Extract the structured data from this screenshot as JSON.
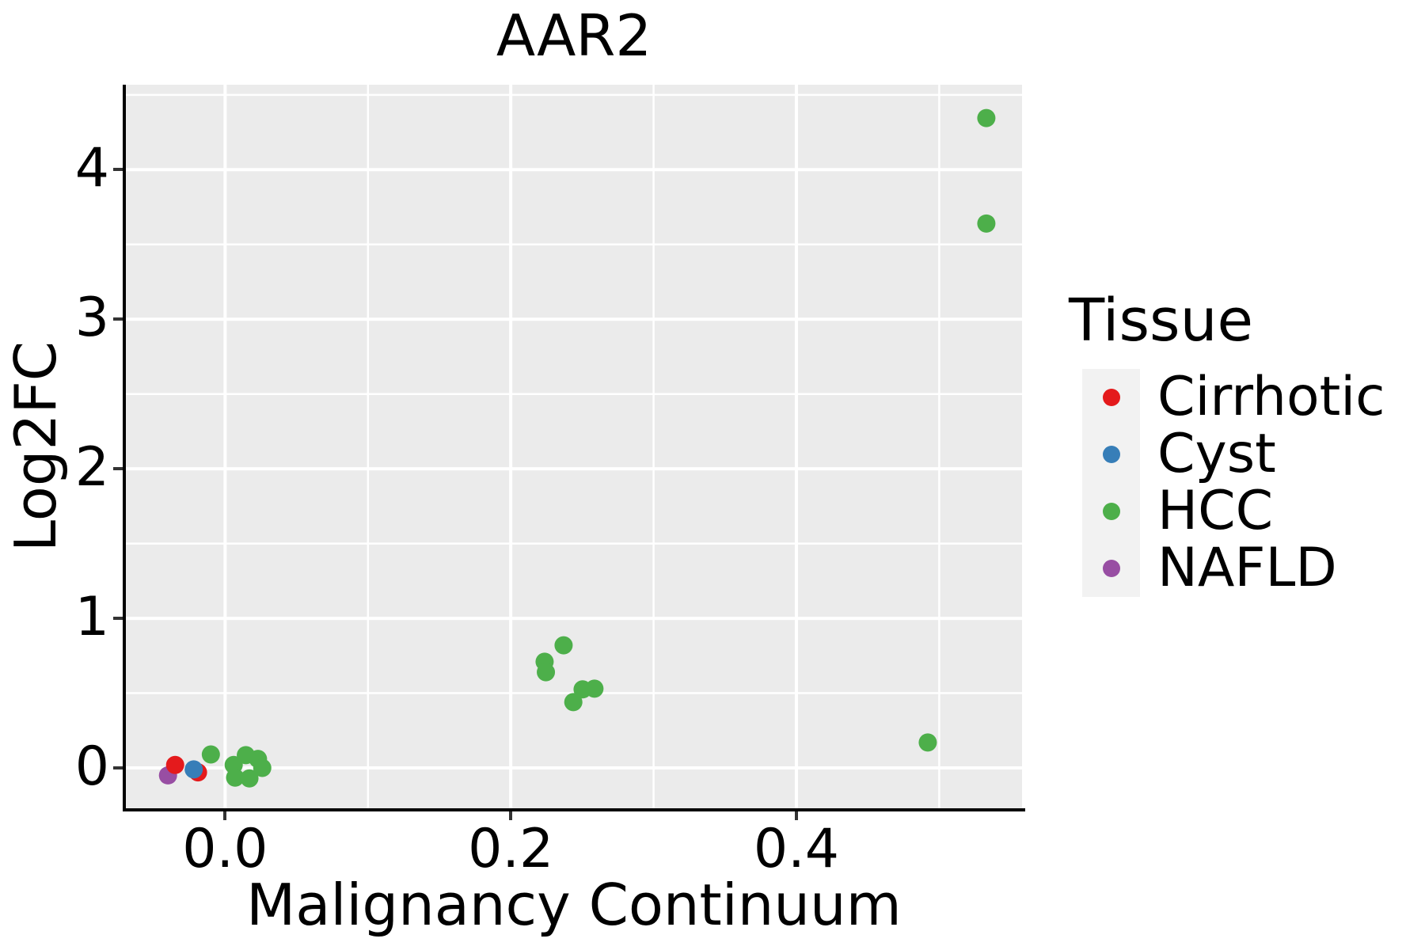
{
  "title": "AAR2",
  "axes": {
    "x": {
      "title": "Malignancy Continuum",
      "tick_labels": [
        "0.0",
        "0.2",
        "0.4"
      ],
      "tick_values": [
        0.0,
        0.2,
        0.4
      ],
      "minor_values": [
        0.1,
        0.3,
        0.5
      ],
      "range": [
        -0.0695,
        0.558
      ]
    },
    "y": {
      "title": "Log2FC",
      "tick_labels": [
        "0",
        "1",
        "2",
        "3",
        "4"
      ],
      "tick_values": [
        0,
        1,
        2,
        3,
        4
      ],
      "minor_values": [
        0.5,
        1.5,
        2.5,
        3.5,
        4.5
      ],
      "range": [
        -0.27,
        4.568
      ]
    }
  },
  "legend": {
    "title": "Tissue",
    "entries": [
      {
        "label": "Cirrhotic",
        "color": "#E41A1C"
      },
      {
        "label": "Cyst",
        "color": "#377EB8"
      },
      {
        "label": "HCC",
        "color": "#4DAF4A"
      },
      {
        "label": "NAFLD",
        "color": "#984EA3"
      }
    ]
  },
  "style": {
    "panel_bg": "#EBEBEB",
    "grid_color": "#FFFFFF",
    "legend_key_bg": "#F2F2F2",
    "axis_line_color": "#000000",
    "tick_color": "#333333",
    "point_radius": 11.5
  },
  "chart_data": {
    "type": "scatter",
    "title": "AAR2",
    "xlabel": "Malignancy Continuum",
    "ylabel": "Log2FC",
    "xlim": [
      -0.0695,
      0.558
    ],
    "ylim": [
      -0.27,
      4.568
    ],
    "grid": true,
    "legend_position": "right",
    "legend_title": "Tissue",
    "series": [
      {
        "name": "NAFLD",
        "color": "#984EA3",
        "points": [
          [
            -0.04,
            -0.05
          ]
        ]
      },
      {
        "name": "Cirrhotic",
        "color": "#E41A1C",
        "points": [
          [
            -0.035,
            0.02
          ],
          [
            -0.019,
            -0.03
          ]
        ]
      },
      {
        "name": "Cyst",
        "color": "#377EB8",
        "points": [
          [
            -0.022,
            -0.01
          ]
        ]
      },
      {
        "name": "HCC",
        "color": "#4DAF4A",
        "points": [
          [
            -0.01,
            0.09
          ],
          [
            0.006,
            0.02
          ],
          [
            0.0145,
            0.085
          ],
          [
            0.023,
            0.06
          ],
          [
            0.007,
            -0.065
          ],
          [
            0.017,
            -0.07
          ],
          [
            0.026,
            0.0
          ],
          [
            0.2237,
            0.71
          ],
          [
            0.2246,
            0.64
          ],
          [
            0.237,
            0.82
          ],
          [
            0.2438,
            0.44
          ],
          [
            0.2503,
            0.525
          ],
          [
            0.2586,
            0.53
          ],
          [
            0.492,
            0.17
          ],
          [
            0.533,
            4.345
          ],
          [
            0.533,
            3.64
          ]
        ]
      }
    ]
  }
}
